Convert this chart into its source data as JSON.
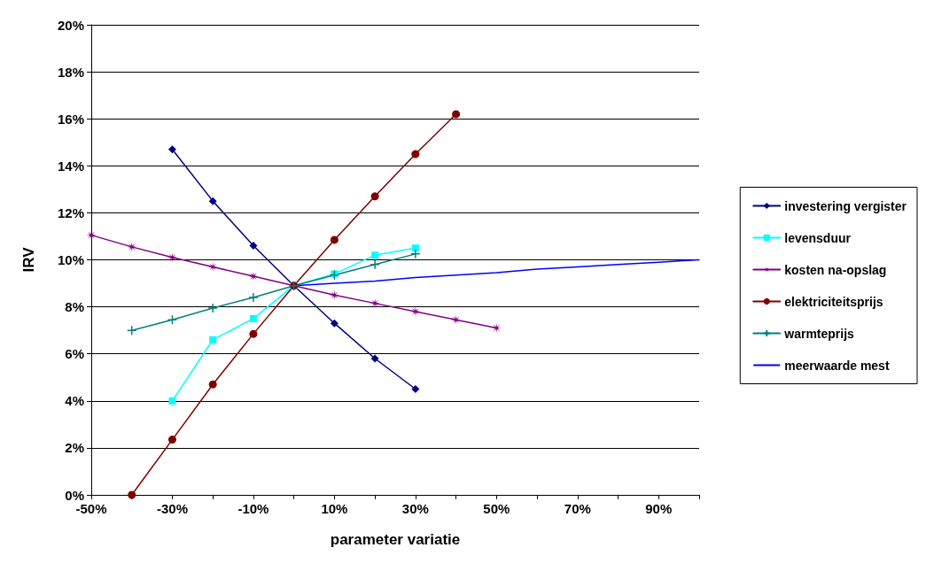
{
  "chart_data": {
    "type": "line",
    "xlabel": "parameter variatie",
    "ylabel": "IRV",
    "xlim": [
      -50,
      100
    ],
    "xticks": [
      {
        "value": -50,
        "label": "-50%"
      },
      {
        "value": -40,
        "label": null
      },
      {
        "value": -30,
        "label": "-30%"
      },
      {
        "value": -20,
        "label": null
      },
      {
        "value": -10,
        "label": "-10%"
      },
      {
        "value": 0,
        "label": null
      },
      {
        "value": 10,
        "label": "10%"
      },
      {
        "value": 20,
        "label": null
      },
      {
        "value": 30,
        "label": "30%"
      },
      {
        "value": 40,
        "label": null
      },
      {
        "value": 50,
        "label": "50%"
      },
      {
        "value": 60,
        "label": null
      },
      {
        "value": 70,
        "label": "70%"
      },
      {
        "value": 80,
        "label": null
      },
      {
        "value": 90,
        "label": "90%"
      },
      {
        "value": 100,
        "label": null
      }
    ],
    "ylim": [
      0,
      20
    ],
    "yticks": [
      {
        "value": 0,
        "label": "0%"
      },
      {
        "value": 2,
        "label": "2%"
      },
      {
        "value": 4,
        "label": "4%"
      },
      {
        "value": 6,
        "label": "6%"
      },
      {
        "value": 8,
        "label": "8%"
      },
      {
        "value": 10,
        "label": "10%"
      },
      {
        "value": 12,
        "label": "12%"
      },
      {
        "value": 14,
        "label": "14%"
      },
      {
        "value": 16,
        "label": "16%"
      },
      {
        "value": 18,
        "label": "18%"
      },
      {
        "value": 20,
        "label": "20%"
      }
    ],
    "grid": "y",
    "legend": "right",
    "line_style": "solid",
    "series": [
      {
        "name": "investering vergister",
        "color": "#000080",
        "marker": "diamond",
        "x": [
          -30,
          -20,
          -10,
          0,
          10,
          20,
          30
        ],
        "values": [
          14.7,
          12.5,
          10.6,
          8.9,
          7.3,
          5.8,
          4.5
        ]
      },
      {
        "name": "levensduur",
        "color": "#00ffff",
        "marker": "square",
        "x": [
          -30,
          -20,
          -10,
          0,
          10,
          20,
          30
        ],
        "values": [
          4.0,
          6.6,
          7.5,
          8.9,
          9.4,
          10.2,
          10.5
        ]
      },
      {
        "name": "kosten na-opslag",
        "color": "#800080",
        "marker": "star",
        "x": [
          -50,
          -40,
          -30,
          -20,
          -10,
          0,
          10,
          20,
          30,
          40,
          50
        ],
        "values": [
          11.05,
          10.55,
          10.1,
          9.7,
          9.3,
          8.9,
          8.5,
          8.15,
          7.8,
          7.45,
          7.1
        ]
      },
      {
        "name": "elektriciteitsprijs",
        "color": "#800000",
        "marker": "circle",
        "x": [
          -40,
          -30,
          -20,
          -10,
          0,
          10,
          20,
          30,
          40
        ],
        "values": [
          0.0,
          2.35,
          4.7,
          6.85,
          8.9,
          10.85,
          12.7,
          14.5,
          16.2
        ]
      },
      {
        "name": "warmteprijs",
        "color": "#008080",
        "marker": "cross",
        "x": [
          -40,
          -30,
          -20,
          -10,
          0,
          10,
          20,
          30
        ],
        "values": [
          7.0,
          7.45,
          7.95,
          8.4,
          8.9,
          9.35,
          9.8,
          10.25
        ]
      },
      {
        "name": "meerwaarde mest",
        "color": "#0000ff",
        "marker": "none",
        "x": [
          0,
          10,
          20,
          30,
          40,
          50,
          60,
          70,
          80,
          90,
          100
        ],
        "values": [
          8.9,
          9.0,
          9.1,
          9.25,
          9.35,
          9.45,
          9.6,
          9.7,
          9.8,
          9.9,
          10.0
        ]
      }
    ]
  }
}
